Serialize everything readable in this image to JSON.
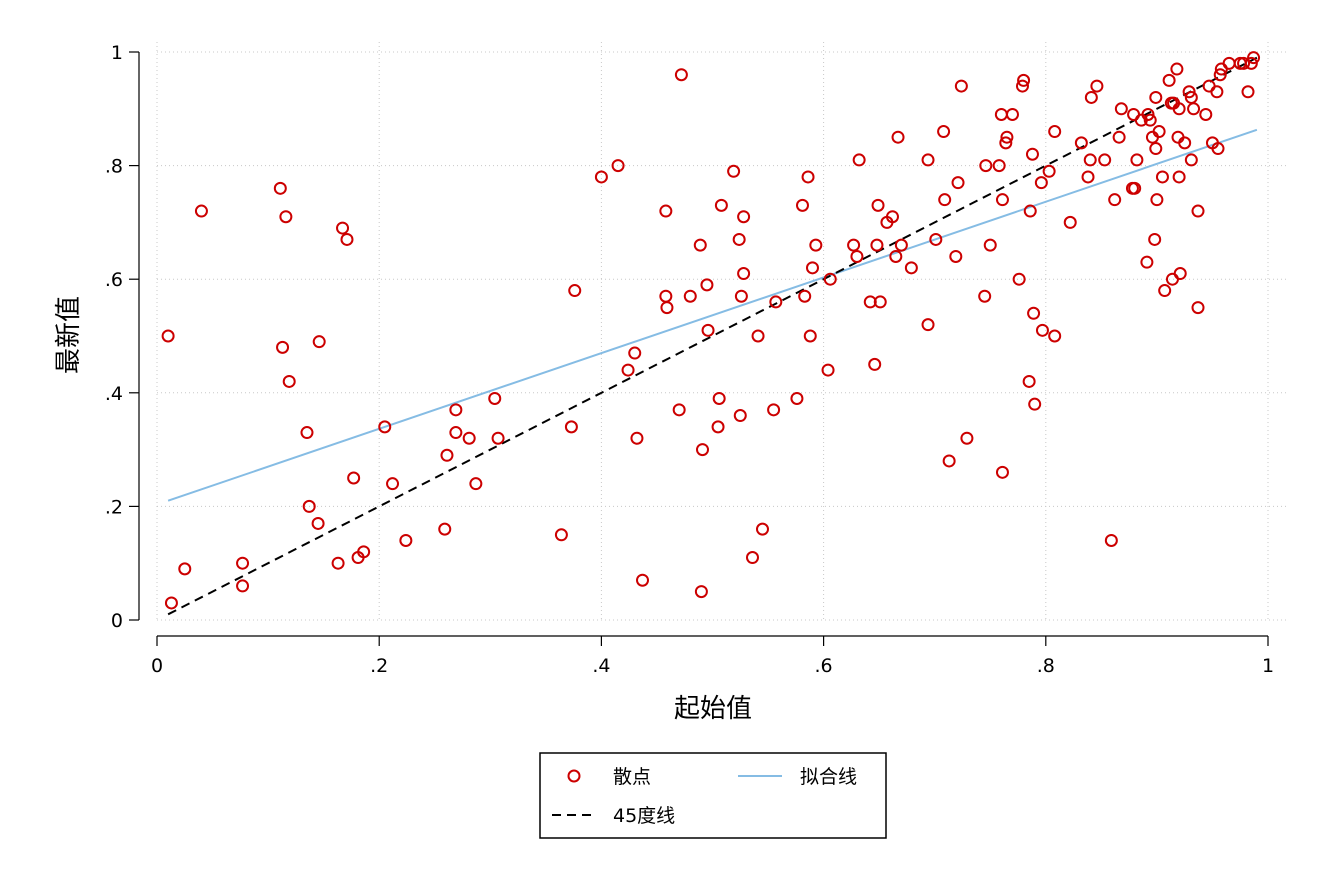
{
  "chart_data": {
    "type": "scatter",
    "title": "",
    "xlabel": "起始值",
    "ylabel": "最新值",
    "xlim": [
      0,
      1
    ],
    "ylim": [
      0,
      1
    ],
    "x_ticks": [
      0,
      0.2,
      0.4,
      0.6,
      0.8,
      1
    ],
    "x_tick_labels": [
      "0",
      ".2",
      ".4",
      ".6",
      ".8",
      "1"
    ],
    "y_ticks": [
      0,
      0.2,
      0.4,
      0.6,
      0.8,
      1
    ],
    "y_tick_labels": [
      "0",
      ".2",
      ".4",
      ".6",
      ".8",
      "1"
    ],
    "grid": "dotted",
    "legend_position": "bottom",
    "colors": {
      "scatter": "#cc0000",
      "fit": "#85bce4",
      "diag": "#000000"
    },
    "series": [
      {
        "name": "散点",
        "kind": "scatter",
        "points": [
          [
            0.01,
            0.5
          ],
          [
            0.013,
            0.03
          ],
          [
            0.025,
            0.09
          ],
          [
            0.04,
            0.72
          ],
          [
            0.077,
            0.1
          ],
          [
            0.077,
            0.06
          ],
          [
            0.111,
            0.76
          ],
          [
            0.113,
            0.48
          ],
          [
            0.116,
            0.71
          ],
          [
            0.119,
            0.42
          ],
          [
            0.135,
            0.33
          ],
          [
            0.137,
            0.2
          ],
          [
            0.145,
            0.17
          ],
          [
            0.146,
            0.49
          ],
          [
            0.163,
            0.1
          ],
          [
            0.167,
            0.69
          ],
          [
            0.171,
            0.67
          ],
          [
            0.177,
            0.25
          ],
          [
            0.181,
            0.11
          ],
          [
            0.186,
            0.12
          ],
          [
            0.205,
            0.34
          ],
          [
            0.212,
            0.24
          ],
          [
            0.224,
            0.14
          ],
          [
            0.259,
            0.16
          ],
          [
            0.261,
            0.29
          ],
          [
            0.269,
            0.37
          ],
          [
            0.269,
            0.33
          ],
          [
            0.281,
            0.32
          ],
          [
            0.287,
            0.24
          ],
          [
            0.304,
            0.39
          ],
          [
            0.307,
            0.32
          ],
          [
            0.364,
            0.15
          ],
          [
            0.373,
            0.34
          ],
          [
            0.376,
            0.58
          ],
          [
            0.4,
            0.78
          ],
          [
            0.415,
            0.8
          ],
          [
            0.424,
            0.44
          ],
          [
            0.43,
            0.47
          ],
          [
            0.432,
            0.32
          ],
          [
            0.437,
            0.07
          ],
          [
            0.458,
            0.72
          ],
          [
            0.458,
            0.57
          ],
          [
            0.459,
            0.55
          ],
          [
            0.47,
            0.37
          ],
          [
            0.472,
            0.96
          ],
          [
            0.48,
            0.57
          ],
          [
            0.489,
            0.66
          ],
          [
            0.49,
            0.05
          ],
          [
            0.491,
            0.3
          ],
          [
            0.495,
            0.59
          ],
          [
            0.496,
            0.51
          ],
          [
            0.505,
            0.34
          ],
          [
            0.506,
            0.39
          ],
          [
            0.508,
            0.73
          ],
          [
            0.519,
            0.79
          ],
          [
            0.524,
            0.67
          ],
          [
            0.525,
            0.36
          ],
          [
            0.526,
            0.57
          ],
          [
            0.528,
            0.61
          ],
          [
            0.528,
            0.71
          ],
          [
            0.536,
            0.11
          ],
          [
            0.541,
            0.5
          ],
          [
            0.545,
            0.16
          ],
          [
            0.555,
            0.37
          ],
          [
            0.557,
            0.56
          ],
          [
            0.576,
            0.39
          ],
          [
            0.581,
            0.73
          ],
          [
            0.583,
            0.57
          ],
          [
            0.586,
            0.78
          ],
          [
            0.588,
            0.5
          ],
          [
            0.59,
            0.62
          ],
          [
            0.593,
            0.66
          ],
          [
            0.604,
            0.44
          ],
          [
            0.606,
            0.6
          ],
          [
            0.627,
            0.66
          ],
          [
            0.63,
            0.64
          ],
          [
            0.632,
            0.81
          ],
          [
            0.642,
            0.56
          ],
          [
            0.646,
            0.45
          ],
          [
            0.648,
            0.66
          ],
          [
            0.649,
            0.73
          ],
          [
            0.651,
            0.56
          ],
          [
            0.657,
            0.7
          ],
          [
            0.662,
            0.71
          ],
          [
            0.665,
            0.64
          ],
          [
            0.667,
            0.85
          ],
          [
            0.67,
            0.66
          ],
          [
            0.679,
            0.62
          ],
          [
            0.694,
            0.81
          ],
          [
            0.694,
            0.52
          ],
          [
            0.701,
            0.67
          ],
          [
            0.708,
            0.86
          ],
          [
            0.709,
            0.74
          ],
          [
            0.713,
            0.28
          ],
          [
            0.719,
            0.64
          ],
          [
            0.721,
            0.77
          ],
          [
            0.724,
            0.94
          ],
          [
            0.729,
            0.32
          ],
          [
            0.745,
            0.57
          ],
          [
            0.746,
            0.8
          ],
          [
            0.75,
            0.66
          ],
          [
            0.758,
            0.8
          ],
          [
            0.76,
            0.89
          ],
          [
            0.761,
            0.74
          ],
          [
            0.761,
            0.26
          ],
          [
            0.764,
            0.84
          ],
          [
            0.765,
            0.85
          ],
          [
            0.77,
            0.89
          ],
          [
            0.776,
            0.6
          ],
          [
            0.779,
            0.94
          ],
          [
            0.78,
            0.95
          ],
          [
            0.785,
            0.42
          ],
          [
            0.786,
            0.72
          ],
          [
            0.788,
            0.82
          ],
          [
            0.789,
            0.54
          ],
          [
            0.79,
            0.38
          ],
          [
            0.796,
            0.77
          ],
          [
            0.797,
            0.51
          ],
          [
            0.803,
            0.79
          ],
          [
            0.808,
            0.5
          ],
          [
            0.808,
            0.86
          ],
          [
            0.822,
            0.7
          ],
          [
            0.832,
            0.84
          ],
          [
            0.838,
            0.78
          ],
          [
            0.84,
            0.81
          ],
          [
            0.841,
            0.92
          ],
          [
            0.846,
            0.94
          ],
          [
            0.853,
            0.81
          ],
          [
            0.859,
            0.14
          ],
          [
            0.862,
            0.74
          ],
          [
            0.866,
            0.85
          ],
          [
            0.868,
            0.9
          ],
          [
            0.878,
            0.76
          ],
          [
            0.879,
            0.89
          ],
          [
            0.88,
            0.76
          ],
          [
            0.882,
            0.81
          ],
          [
            0.886,
            0.88
          ],
          [
            0.891,
            0.63
          ],
          [
            0.892,
            0.89
          ],
          [
            0.894,
            0.88
          ],
          [
            0.896,
            0.85
          ],
          [
            0.898,
            0.67
          ],
          [
            0.899,
            0.83
          ],
          [
            0.899,
            0.92
          ],
          [
            0.9,
            0.74
          ],
          [
            0.902,
            0.86
          ],
          [
            0.905,
            0.78
          ],
          [
            0.907,
            0.58
          ],
          [
            0.911,
            0.95
          ],
          [
            0.913,
            0.91
          ],
          [
            0.914,
            0.6
          ],
          [
            0.915,
            0.91
          ],
          [
            0.918,
            0.97
          ],
          [
            0.919,
            0.85
          ],
          [
            0.92,
            0.78
          ],
          [
            0.92,
            0.9
          ],
          [
            0.921,
            0.61
          ],
          [
            0.925,
            0.84
          ],
          [
            0.929,
            0.93
          ],
          [
            0.931,
            0.92
          ],
          [
            0.931,
            0.81
          ],
          [
            0.933,
            0.9
          ],
          [
            0.937,
            0.72
          ],
          [
            0.937,
            0.55
          ],
          [
            0.944,
            0.89
          ],
          [
            0.947,
            0.94
          ],
          [
            0.95,
            0.84
          ],
          [
            0.954,
            0.93
          ],
          [
            0.955,
            0.83
          ],
          [
            0.957,
            0.96
          ],
          [
            0.958,
            0.97
          ],
          [
            0.965,
            0.98
          ],
          [
            0.975,
            0.98
          ],
          [
            0.978,
            0.98
          ],
          [
            0.982,
            0.93
          ],
          [
            0.985,
            0.98
          ],
          [
            0.987,
            0.99
          ]
        ]
      },
      {
        "name": "拟合线",
        "kind": "line",
        "x": [
          0.01,
          0.99
        ],
        "y": [
          0.21,
          0.863
        ]
      },
      {
        "name": "45度线",
        "kind": "dashed-line",
        "x": [
          0.01,
          0.99
        ],
        "y": [
          0.01,
          0.99
        ]
      }
    ]
  }
}
